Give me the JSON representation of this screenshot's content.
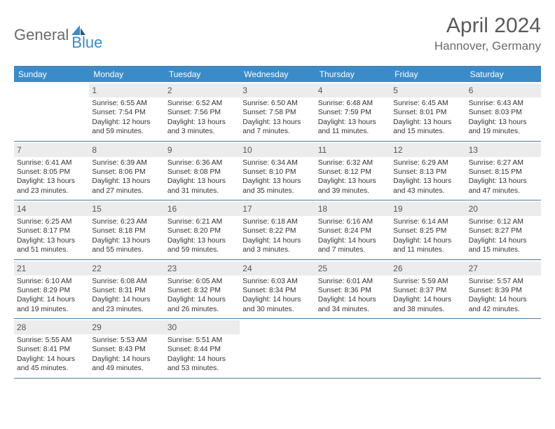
{
  "brand": {
    "word1": "General",
    "word2": "Blue"
  },
  "title": "April 2024",
  "location": "Hannover, Germany",
  "colors": {
    "header_bg": "#3b8bc9",
    "header_fg": "#ffffff",
    "border": "#4a7ba6",
    "daynum_bg": "#ececec",
    "text": "#333333",
    "logo_gray": "#6a6a6a",
    "logo_blue": "#3b8bc9"
  },
  "days_of_week": [
    "Sunday",
    "Monday",
    "Tuesday",
    "Wednesday",
    "Thursday",
    "Friday",
    "Saturday"
  ],
  "first_weekday_offset": 1,
  "cells": [
    {
      "n": 1,
      "sr": "6:55 AM",
      "ss": "7:54 PM",
      "dl": "12 hours and 59 minutes."
    },
    {
      "n": 2,
      "sr": "6:52 AM",
      "ss": "7:56 PM",
      "dl": "13 hours and 3 minutes."
    },
    {
      "n": 3,
      "sr": "6:50 AM",
      "ss": "7:58 PM",
      "dl": "13 hours and 7 minutes."
    },
    {
      "n": 4,
      "sr": "6:48 AM",
      "ss": "7:59 PM",
      "dl": "13 hours and 11 minutes."
    },
    {
      "n": 5,
      "sr": "6:45 AM",
      "ss": "8:01 PM",
      "dl": "13 hours and 15 minutes."
    },
    {
      "n": 6,
      "sr": "6:43 AM",
      "ss": "8:03 PM",
      "dl": "13 hours and 19 minutes."
    },
    {
      "n": 7,
      "sr": "6:41 AM",
      "ss": "8:05 PM",
      "dl": "13 hours and 23 minutes."
    },
    {
      "n": 8,
      "sr": "6:39 AM",
      "ss": "8:06 PM",
      "dl": "13 hours and 27 minutes."
    },
    {
      "n": 9,
      "sr": "6:36 AM",
      "ss": "8:08 PM",
      "dl": "13 hours and 31 minutes."
    },
    {
      "n": 10,
      "sr": "6:34 AM",
      "ss": "8:10 PM",
      "dl": "13 hours and 35 minutes."
    },
    {
      "n": 11,
      "sr": "6:32 AM",
      "ss": "8:12 PM",
      "dl": "13 hours and 39 minutes."
    },
    {
      "n": 12,
      "sr": "6:29 AM",
      "ss": "8:13 PM",
      "dl": "13 hours and 43 minutes."
    },
    {
      "n": 13,
      "sr": "6:27 AM",
      "ss": "8:15 PM",
      "dl": "13 hours and 47 minutes."
    },
    {
      "n": 14,
      "sr": "6:25 AM",
      "ss": "8:17 PM",
      "dl": "13 hours and 51 minutes."
    },
    {
      "n": 15,
      "sr": "6:23 AM",
      "ss": "8:18 PM",
      "dl": "13 hours and 55 minutes."
    },
    {
      "n": 16,
      "sr": "6:21 AM",
      "ss": "8:20 PM",
      "dl": "13 hours and 59 minutes."
    },
    {
      "n": 17,
      "sr": "6:18 AM",
      "ss": "8:22 PM",
      "dl": "14 hours and 3 minutes."
    },
    {
      "n": 18,
      "sr": "6:16 AM",
      "ss": "8:24 PM",
      "dl": "14 hours and 7 minutes."
    },
    {
      "n": 19,
      "sr": "6:14 AM",
      "ss": "8:25 PM",
      "dl": "14 hours and 11 minutes."
    },
    {
      "n": 20,
      "sr": "6:12 AM",
      "ss": "8:27 PM",
      "dl": "14 hours and 15 minutes."
    },
    {
      "n": 21,
      "sr": "6:10 AM",
      "ss": "8:29 PM",
      "dl": "14 hours and 19 minutes."
    },
    {
      "n": 22,
      "sr": "6:08 AM",
      "ss": "8:31 PM",
      "dl": "14 hours and 23 minutes."
    },
    {
      "n": 23,
      "sr": "6:05 AM",
      "ss": "8:32 PM",
      "dl": "14 hours and 26 minutes."
    },
    {
      "n": 24,
      "sr": "6:03 AM",
      "ss": "8:34 PM",
      "dl": "14 hours and 30 minutes."
    },
    {
      "n": 25,
      "sr": "6:01 AM",
      "ss": "8:36 PM",
      "dl": "14 hours and 34 minutes."
    },
    {
      "n": 26,
      "sr": "5:59 AM",
      "ss": "8:37 PM",
      "dl": "14 hours and 38 minutes."
    },
    {
      "n": 27,
      "sr": "5:57 AM",
      "ss": "8:39 PM",
      "dl": "14 hours and 42 minutes."
    },
    {
      "n": 28,
      "sr": "5:55 AM",
      "ss": "8:41 PM",
      "dl": "14 hours and 45 minutes."
    },
    {
      "n": 29,
      "sr": "5:53 AM",
      "ss": "8:43 PM",
      "dl": "14 hours and 49 minutes."
    },
    {
      "n": 30,
      "sr": "5:51 AM",
      "ss": "8:44 PM",
      "dl": "14 hours and 53 minutes."
    }
  ],
  "labels": {
    "sunrise": "Sunrise:",
    "sunset": "Sunset:",
    "daylight": "Daylight:"
  }
}
